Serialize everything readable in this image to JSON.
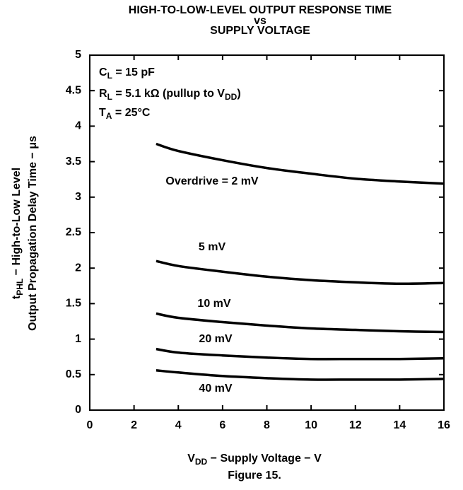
{
  "chart_data": {
    "type": "line",
    "title": [
      "HIGH-TO-LOW-LEVEL OUTPUT RESPONSE TIME",
      "vs",
      "SUPPLY VOLTAGE"
    ],
    "conditions": [
      [
        "C",
        "L",
        " = 15 pF"
      ],
      [
        "R",
        "L",
        " = 5.1 kΩ (pullup to V",
        "DD",
        ")"
      ],
      [
        "T",
        "A",
        " =  25°C"
      ]
    ],
    "y_label": [
      [
        "t",
        "PHL",
        " − High-to-Low Level"
      ],
      [
        "Output Propagation Delay Time − μs"
      ]
    ],
    "x_label": [
      "V",
      "DD",
      " − Supply Voltage − V"
    ],
    "caption": "Figure 15.",
    "x": [
      3,
      4,
      6,
      8,
      10,
      12,
      14,
      16
    ],
    "series": [
      {
        "name": "Overdrive = 2 mV",
        "color": "#000000",
        "values": [
          3.75,
          3.65,
          3.52,
          3.41,
          3.33,
          3.26,
          3.22,
          3.19
        ]
      },
      {
        "name": "5 mV",
        "color": "#000000",
        "values": [
          2.1,
          2.03,
          1.95,
          1.88,
          1.83,
          1.8,
          1.78,
          1.79
        ]
      },
      {
        "name": "10 mV",
        "color": "#000000",
        "values": [
          1.36,
          1.3,
          1.24,
          1.19,
          1.15,
          1.13,
          1.11,
          1.1
        ]
      },
      {
        "name": "20 mV",
        "color": "#000000",
        "values": [
          0.86,
          0.81,
          0.77,
          0.74,
          0.72,
          0.72,
          0.72,
          0.73
        ]
      },
      {
        "name": "40 mV",
        "color": "#000000",
        "values": [
          0.56,
          0.53,
          0.48,
          0.45,
          0.43,
          0.43,
          0.43,
          0.44
        ]
      }
    ],
    "xlim": [
      0,
      16
    ],
    "xticks": [
      0,
      2,
      4,
      6,
      8,
      10,
      12,
      14,
      16
    ],
    "ylim": [
      0,
      5
    ],
    "yticks": [
      0,
      0.5,
      1,
      1.5,
      2,
      2.5,
      3,
      3.5,
      4,
      4.5,
      5
    ],
    "grid": false
  }
}
